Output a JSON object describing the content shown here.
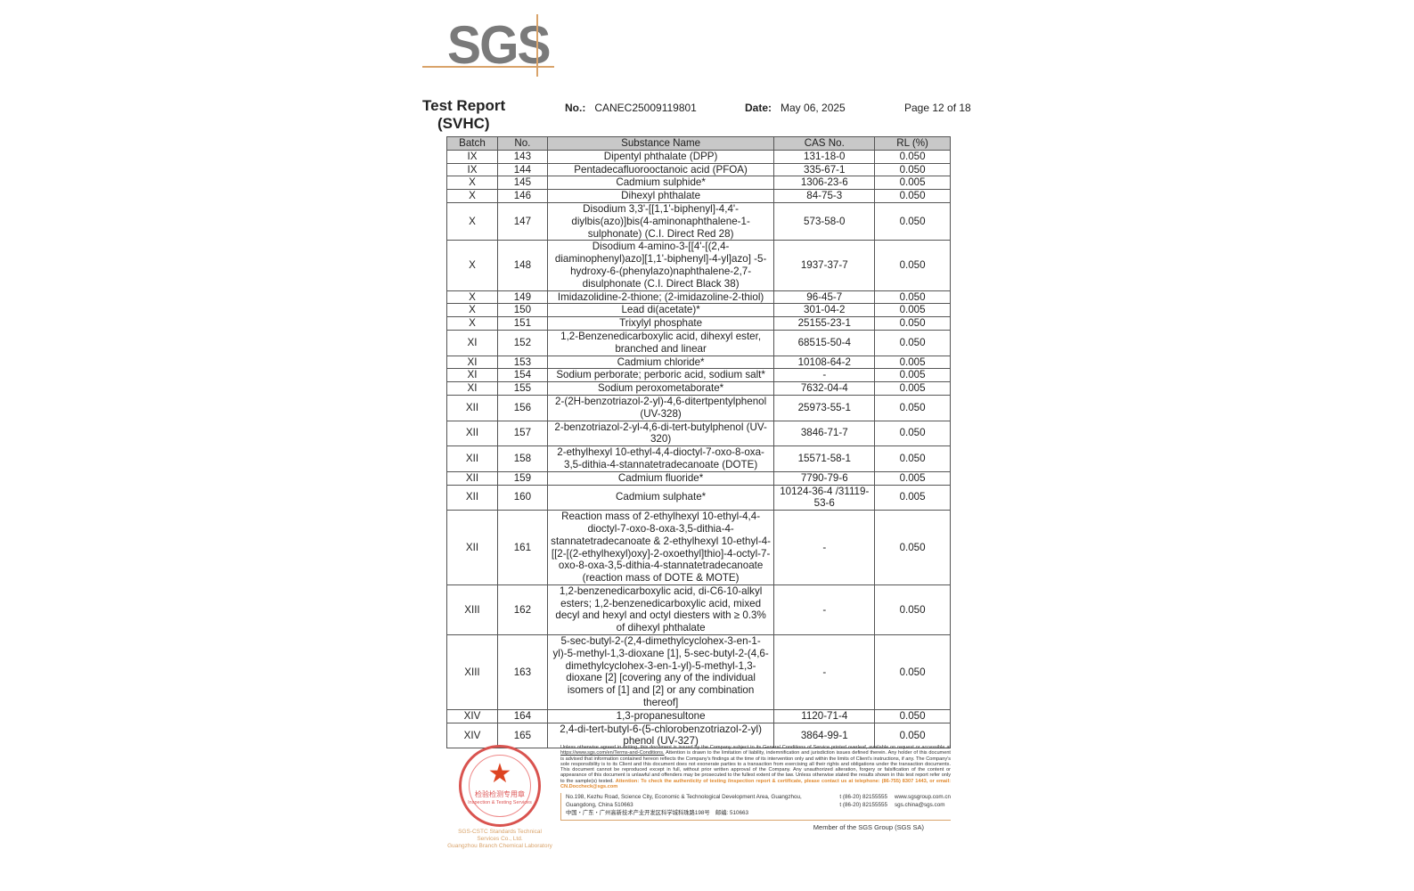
{
  "logo": {
    "text": "SGS",
    "accent": "#d9a36a"
  },
  "header": {
    "title_line1": "Test Report",
    "title_line2": "(SVHC)",
    "no_label": "No.:",
    "no_value": "CANEC25009119801",
    "date_label": "Date:",
    "date_value": "May 06, 2025",
    "page": "Page 12 of 18"
  },
  "table": {
    "columns": [
      "Batch",
      "No.",
      "Substance Name",
      "CAS No.",
      "RL (%)"
    ],
    "rows": [
      [
        "IX",
        "143",
        "Dipentyl phthalate (DPP)",
        "131-18-0",
        "0.050"
      ],
      [
        "IX",
        "144",
        "Pentadecafluorooctanoic acid (PFOA)",
        "335-67-1",
        "0.050"
      ],
      [
        "X",
        "145",
        "Cadmium sulphide*",
        "1306-23-6",
        "0.005"
      ],
      [
        "X",
        "146",
        "Dihexyl phthalate",
        "84-75-3",
        "0.050"
      ],
      [
        "X",
        "147",
        "Disodium 3,3'-[[1,1'-biphenyl]-4,4'-diylbis(azo)]bis(4-aminonaphthalene-1-sulphonate) (C.I. Direct Red 28)",
        "573-58-0",
        "0.050"
      ],
      [
        "X",
        "148",
        "Disodium 4-amino-3-[[4'-[(2,4-diaminophenyl)azo][1,1'-biphenyl]-4-yl]azo] -5-hydroxy-6-(phenylazo)naphthalene-2,7-disulphonate (C.I. Direct Black 38)",
        "1937-37-7",
        "0.050"
      ],
      [
        "X",
        "149",
        "Imidazolidine-2-thione; (2-imidazoline-2-thiol)",
        "96-45-7",
        "0.050"
      ],
      [
        "X",
        "150",
        "Lead di(acetate)*",
        "301-04-2",
        "0.005"
      ],
      [
        "X",
        "151",
        "Trixylyl phosphate",
        "25155-23-1",
        "0.050"
      ],
      [
        "XI",
        "152",
        "1,2-Benzenedicarboxylic acid, dihexyl ester, branched and linear",
        "68515-50-4",
        "0.050"
      ],
      [
        "XI",
        "153",
        "Cadmium chloride*",
        "10108-64-2",
        "0.005"
      ],
      [
        "XI",
        "154",
        "Sodium perborate; perboric acid, sodium salt*",
        "-",
        "0.005"
      ],
      [
        "XI",
        "155",
        "Sodium peroxometaborate*",
        "7632-04-4",
        "0.005"
      ],
      [
        "XII",
        "156",
        "2-(2H-benzotriazol-2-yl)-4,6-ditertpentylphenol (UV-328)",
        "25973-55-1",
        "0.050"
      ],
      [
        "XII",
        "157",
        "2-benzotriazol-2-yl-4,6-di-tert-butylphenol (UV-320)",
        "3846-71-7",
        "0.050"
      ],
      [
        "XII",
        "158",
        "2-ethylhexyl 10-ethyl-4,4-dioctyl-7-oxo-8-oxa-3,5-dithia-4-stannatetradecanoate (DOTE)",
        "15571-58-1",
        "0.050"
      ],
      [
        "XII",
        "159",
        "Cadmium fluoride*",
        "7790-79-6",
        "0.005"
      ],
      [
        "XII",
        "160",
        "Cadmium sulphate*",
        "10124-36-4 /31119-53-6",
        "0.005"
      ],
      [
        "XII",
        "161",
        "Reaction mass of 2-ethylhexyl 10-ethyl-4,4-dioctyl-7-oxo-8-oxa-3,5-dithia-4-stannatetradecanoate & 2-ethylhexyl 10-ethyl-4-[[2-[(2-ethylhexyl)oxy]-2-oxoethyl]thio]-4-octyl-7-oxo-8-oxa-3,5-dithia-4-stannatetradecanoate (reaction mass of DOTE & MOTE)",
        "-",
        "0.050"
      ],
      [
        "XIII",
        "162",
        "1,2-benzenedicarboxylic acid, di-C6-10-alkyl esters; 1,2-benzenedicarboxylic acid, mixed decyl and hexyl and octyl diesters with ≥ 0.3% of dihexyl phthalate",
        "-",
        "0.050"
      ],
      [
        "XIII",
        "163",
        "5-sec-butyl-2-(2,4-dimethylcyclohex-3-en-1-yl)-5-methyl-1,3-dioxane [1], 5-sec-butyl-2-(4,6-dimethylcyclohex-3-en-1-yl)-5-methyl-1,3-dioxane [2] [covering any of the individual isomers of [1] and [2] or any combination thereof]",
        "-",
        "0.050"
      ],
      [
        "XIV",
        "164",
        "1,3-propanesultone",
        "1120-71-4",
        "0.050"
      ],
      [
        "XIV",
        "165",
        "2,4-di-tert-butyl-6-(5-chlorobenzotriazol-2-yl) phenol (UV-327)",
        "3864-99-1",
        "0.050"
      ]
    ]
  },
  "footer": {
    "seal_text": "检验检测专用章",
    "seal_subtext": "Inspection & Testing Services",
    "seal_caption1": "SGS-CSTC Standards Technical Services Co., Ltd.",
    "seal_caption2": "Guangzhou Branch Chemical Laboratory",
    "disclaimer": "Unless otherwise agreed in writing, this document is issued by the Company subject to its General Conditions of Service printed overleaf, available on request or accessible at ",
    "disclaimer_link": "https://www.sgs.com/en/Terms-and-Conditions.",
    "disclaimer_rest": " Attention is drawn to the limitation of liability, indemnification and jurisdiction issues defined therein. Any holder of this document is advised that information contained hereon reflects the Company's findings at the time of its intervention only and within the limits of Client's instructions, if any. The Company's sole responsibility is to its Client and this document does not exonerate parties to a transaction from exercising all their rights and obligations under the transaction documents. This document cannot be reproduced except in full, without prior written approval of the Company. Any unauthorized alteration, forgery or falsification of the content or appearance of this document is unlawful and offenders may be prosecuted to the fullest extent of the law. Unless otherwise stated the results shown in this test report refer only to the sample(s) tested.",
    "attention": "Attention: To check the authenticity of testing /inspection report & certificate, please contact us at telephone: (86-755) 8307 1443, or email: CN.Doccheck@sgs.com",
    "address_en": "No.198, Kezhu Road, Science City, Economic & Technological Development Area, Guangzhou, Guangdong, China 510663",
    "address_cn": "中国・广东・广州高新技术产业开发区科学城科珠路198号　邮编: 510663",
    "tel1": "t (86-20) 82155555",
    "tel2": "t (86-20) 82155555",
    "web": "www.sgsgroup.com.cn",
    "email": "sgs.china@sgs.com",
    "member": "Member of the SGS Group (SGS SA)"
  }
}
